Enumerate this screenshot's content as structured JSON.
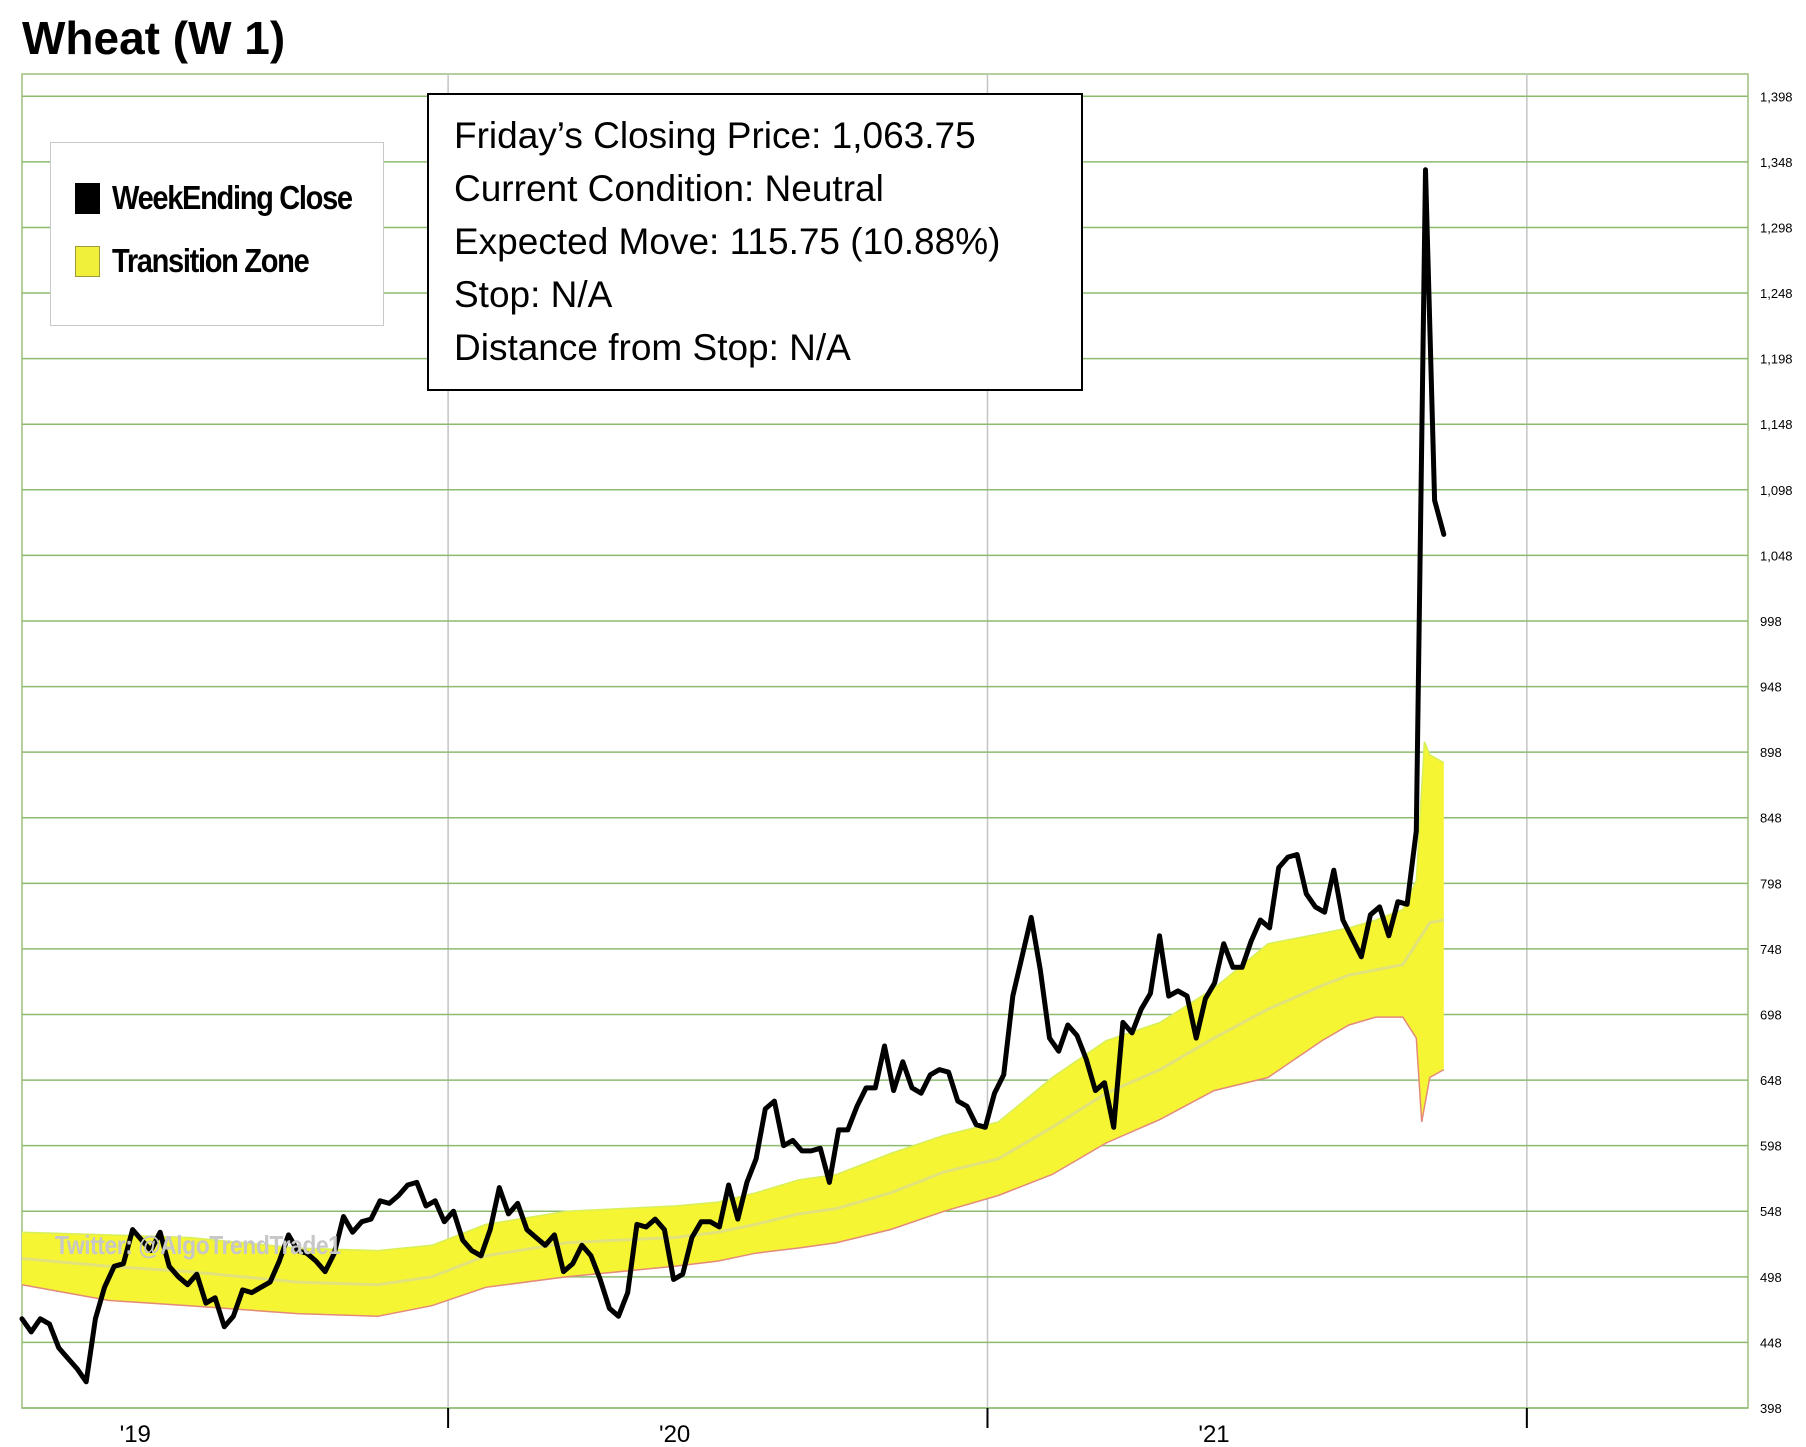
{
  "title": "Wheat (W 1)",
  "info_box": {
    "lines": [
      "Friday’s Closing Price: 1,063.75",
      "Current Condition: Neutral",
      "Expected Move: 115.75 (10.88%)",
      "Stop: N/A",
      "Distance from Stop: N/A"
    ]
  },
  "legend": [
    {
      "label": "WeekEnding Close",
      "swatch": "black-square-icon"
    },
    {
      "label": "Transition Zone",
      "swatch": "yellow-square-icon"
    }
  ],
  "watermark": "Twitter: @AlgoTrendTrade1",
  "colors": {
    "close": "#000000",
    "zone_fill": "#f5f534",
    "zone_upper": "#d8ef5a",
    "zone_lower": "#e38a7a",
    "zone_mid": "#e2e27a",
    "grid": "#8dbb6e",
    "vgrid": "#c4c4c4"
  },
  "chart_data": {
    "type": "line",
    "title": "Wheat (W 1)",
    "y_ticks": [
      398,
      448,
      498,
      548,
      598,
      648,
      698,
      748,
      798,
      848,
      898,
      948,
      998,
      1048,
      1098,
      1148,
      1198,
      1248,
      1298,
      1348,
      1398
    ],
    "y_tick_labels": [
      "398",
      "448",
      "498",
      "548",
      "598",
      "648",
      "698",
      "748",
      "798",
      "848",
      "898",
      "948",
      "998",
      "1,048",
      "1,098",
      "1,148",
      "1,198",
      "1,248",
      "1,298",
      "1,348",
      "1,398"
    ],
    "ylim": [
      398,
      1415
    ],
    "x_labels": [
      {
        "label": "'19",
        "x": 2019.0
      },
      {
        "label": "'20",
        "x": 2020.0
      },
      {
        "label": "'21",
        "x": 2021.0
      }
    ],
    "x_range": [
      2018.79,
      2021.99
    ],
    "year_boundaries": [
      2019.58,
      2020.58,
      2021.58
    ],
    "series": [
      {
        "name": "WeekEnding Close",
        "points": [
          [
            2018.79,
            466
          ],
          [
            2018.807,
            456
          ],
          [
            2018.824,
            466
          ],
          [
            2018.841,
            462
          ],
          [
            2018.858,
            444
          ],
          [
            2018.875,
            436
          ],
          [
            2018.892,
            428
          ],
          [
            2018.909,
            418
          ],
          [
            2018.926,
            466
          ],
          [
            2018.943,
            490
          ],
          [
            2018.961,
            506
          ],
          [
            2018.978,
            508
          ],
          [
            2018.995,
            534
          ],
          [
            2019.012,
            526
          ],
          [
            2019.029,
            518
          ],
          [
            2019.046,
            532
          ],
          [
            2019.063,
            506
          ],
          [
            2019.08,
            498
          ],
          [
            2019.097,
            492
          ],
          [
            2019.114,
            500
          ],
          [
            2019.131,
            478
          ],
          [
            2019.148,
            482
          ],
          [
            2019.165,
            460
          ],
          [
            2019.182,
            468
          ],
          [
            2019.199,
            488
          ],
          [
            2019.216,
            486
          ],
          [
            2019.233,
            490
          ],
          [
            2019.25,
            494
          ],
          [
            2019.267,
            510
          ],
          [
            2019.284,
            530
          ],
          [
            2019.301,
            518
          ],
          [
            2019.318,
            516
          ],
          [
            2019.335,
            510
          ],
          [
            2019.352,
            502
          ],
          [
            2019.369,
            516
          ],
          [
            2019.386,
            544
          ],
          [
            2019.403,
            532
          ],
          [
            2019.42,
            540
          ],
          [
            2019.437,
            542
          ],
          [
            2019.454,
            556
          ],
          [
            2019.471,
            554
          ],
          [
            2019.488,
            560
          ],
          [
            2019.505,
            568
          ],
          [
            2019.522,
            570
          ],
          [
            2019.539,
            552
          ],
          [
            2019.556,
            556
          ],
          [
            2019.573,
            540
          ],
          [
            2019.59,
            548
          ],
          [
            2019.607,
            526
          ],
          [
            2019.624,
            518
          ],
          [
            2019.641,
            514
          ],
          [
            2019.658,
            534
          ],
          [
            2019.675,
            566
          ],
          [
            2019.692,
            546
          ],
          [
            2019.709,
            554
          ],
          [
            2019.726,
            534
          ],
          [
            2019.743,
            528
          ],
          [
            2019.76,
            522
          ],
          [
            2019.777,
            530
          ],
          [
            2019.794,
            502
          ],
          [
            2019.811,
            508
          ],
          [
            2019.828,
            522
          ],
          [
            2019.845,
            514
          ],
          [
            2019.862,
            496
          ],
          [
            2019.879,
            474
          ],
          [
            2019.896,
            468
          ],
          [
            2019.913,
            486
          ],
          [
            2019.93,
            538
          ],
          [
            2019.947,
            536
          ],
          [
            2019.964,
            542
          ],
          [
            2019.981,
            534
          ],
          [
            2019.998,
            496
          ],
          [
            2020.015,
            500
          ],
          [
            2020.032,
            528
          ],
          [
            2020.049,
            540
          ],
          [
            2020.066,
            540
          ],
          [
            2020.083,
            536
          ],
          [
            2020.1,
            568
          ],
          [
            2020.117,
            542
          ],
          [
            2020.134,
            570
          ],
          [
            2020.151,
            588
          ],
          [
            2020.168,
            626
          ],
          [
            2020.185,
            632
          ],
          [
            2020.202,
            598
          ],
          [
            2020.219,
            602
          ],
          [
            2020.236,
            594
          ],
          [
            2020.253,
            594
          ],
          [
            2020.27,
            596
          ],
          [
            2020.287,
            570
          ],
          [
            2020.304,
            610
          ],
          [
            2020.321,
            610
          ],
          [
            2020.338,
            628
          ],
          [
            2020.355,
            642
          ],
          [
            2020.372,
            642
          ],
          [
            2020.389,
            674
          ],
          [
            2020.406,
            640
          ],
          [
            2020.423,
            662
          ],
          [
            2020.44,
            642
          ],
          [
            2020.457,
            638
          ],
          [
            2020.474,
            652
          ],
          [
            2020.491,
            656
          ],
          [
            2020.508,
            654
          ],
          [
            2020.525,
            632
          ],
          [
            2020.542,
            628
          ],
          [
            2020.559,
            614
          ],
          [
            2020.576,
            612
          ],
          [
            2020.593,
            638
          ],
          [
            2020.61,
            652
          ],
          [
            2020.627,
            712
          ],
          [
            2020.644,
            742
          ],
          [
            2020.661,
            772
          ],
          [
            2020.678,
            732
          ],
          [
            2020.695,
            680
          ],
          [
            2020.712,
            670
          ],
          [
            2020.729,
            690
          ],
          [
            2020.746,
            682
          ],
          [
            2020.763,
            664
          ],
          [
            2020.78,
            640
          ],
          [
            2020.797,
            646
          ],
          [
            2020.814,
            612
          ],
          [
            2020.831,
            692
          ],
          [
            2020.848,
            684
          ],
          [
            2020.865,
            702
          ],
          [
            2020.882,
            714
          ],
          [
            2020.899,
            758
          ],
          [
            2020.916,
            712
          ],
          [
            2020.933,
            716
          ],
          [
            2020.95,
            712
          ],
          [
            2020.967,
            680
          ],
          [
            2020.984,
            710
          ],
          [
            2021.001,
            722
          ],
          [
            2021.018,
            752
          ],
          [
            2021.035,
            734
          ],
          [
            2021.052,
            734
          ],
          [
            2021.069,
            754
          ],
          [
            2021.086,
            770
          ],
          [
            2021.103,
            764
          ],
          [
            2021.12,
            810
          ],
          [
            2021.137,
            818
          ],
          [
            2021.154,
            820
          ],
          [
            2021.171,
            790
          ],
          [
            2021.188,
            780
          ],
          [
            2021.205,
            776
          ],
          [
            2021.222,
            808
          ],
          [
            2021.239,
            770
          ],
          [
            2021.256,
            756
          ],
          [
            2021.273,
            742
          ],
          [
            2021.29,
            774
          ],
          [
            2021.307,
            780
          ],
          [
            2021.324,
            758
          ],
          [
            2021.341,
            784
          ],
          [
            2021.358,
            782
          ],
          [
            2021.375,
            838
          ],
          [
            2021.392,
            1342
          ],
          [
            2021.409,
            1090
          ],
          [
            2021.426,
            1064
          ]
        ]
      },
      {
        "name": "Transition Zone",
        "upper": [
          [
            2018.79,
            532
          ],
          [
            2018.95,
            530
          ],
          [
            2019.1,
            528
          ],
          [
            2019.3,
            520
          ],
          [
            2019.45,
            518
          ],
          [
            2019.55,
            522
          ],
          [
            2019.65,
            538
          ],
          [
            2019.8,
            548
          ],
          [
            2020.0,
            552
          ],
          [
            2020.08,
            555
          ],
          [
            2020.15,
            562
          ],
          [
            2020.23,
            572
          ],
          [
            2020.3,
            576
          ],
          [
            2020.4,
            592
          ],
          [
            2020.5,
            606
          ],
          [
            2020.6,
            616
          ],
          [
            2020.7,
            650
          ],
          [
            2020.8,
            678
          ],
          [
            2020.9,
            692
          ],
          [
            2021.0,
            718
          ],
          [
            2021.1,
            752
          ],
          [
            2021.2,
            760
          ],
          [
            2021.25,
            764
          ],
          [
            2021.3,
            770
          ],
          [
            2021.35,
            778
          ],
          [
            2021.375,
            800
          ],
          [
            2021.39,
            906
          ],
          [
            2021.4,
            896
          ],
          [
            2021.426,
            890
          ]
        ],
        "lower": [
          [
            2018.79,
            492
          ],
          [
            2018.95,
            480
          ],
          [
            2019.1,
            476
          ],
          [
            2019.3,
            470
          ],
          [
            2019.45,
            468
          ],
          [
            2019.55,
            476
          ],
          [
            2019.65,
            490
          ],
          [
            2019.8,
            498
          ],
          [
            2020.0,
            506
          ],
          [
            2020.08,
            510
          ],
          [
            2020.15,
            516
          ],
          [
            2020.23,
            520
          ],
          [
            2020.3,
            524
          ],
          [
            2020.4,
            534
          ],
          [
            2020.5,
            548
          ],
          [
            2020.6,
            560
          ],
          [
            2020.7,
            576
          ],
          [
            2020.8,
            600
          ],
          [
            2020.9,
            618
          ],
          [
            2021.0,
            640
          ],
          [
            2021.1,
            650
          ],
          [
            2021.2,
            678
          ],
          [
            2021.25,
            690
          ],
          [
            2021.3,
            696
          ],
          [
            2021.35,
            696
          ],
          [
            2021.375,
            680
          ],
          [
            2021.385,
            616
          ],
          [
            2021.4,
            650
          ],
          [
            2021.426,
            656
          ]
        ],
        "mid": [
          [
            2018.79,
            512
          ],
          [
            2018.95,
            506
          ],
          [
            2019.1,
            502
          ],
          [
            2019.3,
            494
          ],
          [
            2019.45,
            492
          ],
          [
            2019.55,
            498
          ],
          [
            2019.65,
            514
          ],
          [
            2019.8,
            524
          ],
          [
            2020.0,
            528
          ],
          [
            2020.08,
            532
          ],
          [
            2020.15,
            538
          ],
          [
            2020.23,
            546
          ],
          [
            2020.3,
            550
          ],
          [
            2020.4,
            562
          ],
          [
            2020.5,
            578
          ],
          [
            2020.6,
            588
          ],
          [
            2020.7,
            612
          ],
          [
            2020.8,
            638
          ],
          [
            2020.9,
            656
          ],
          [
            2021.0,
            680
          ],
          [
            2021.1,
            702
          ],
          [
            2021.2,
            720
          ],
          [
            2021.25,
            728
          ],
          [
            2021.3,
            732
          ],
          [
            2021.35,
            736
          ],
          [
            2021.375,
            752
          ],
          [
            2021.4,
            768
          ],
          [
            2021.426,
            770
          ]
        ]
      }
    ],
    "grid": true,
    "legend_position": "top-left"
  }
}
